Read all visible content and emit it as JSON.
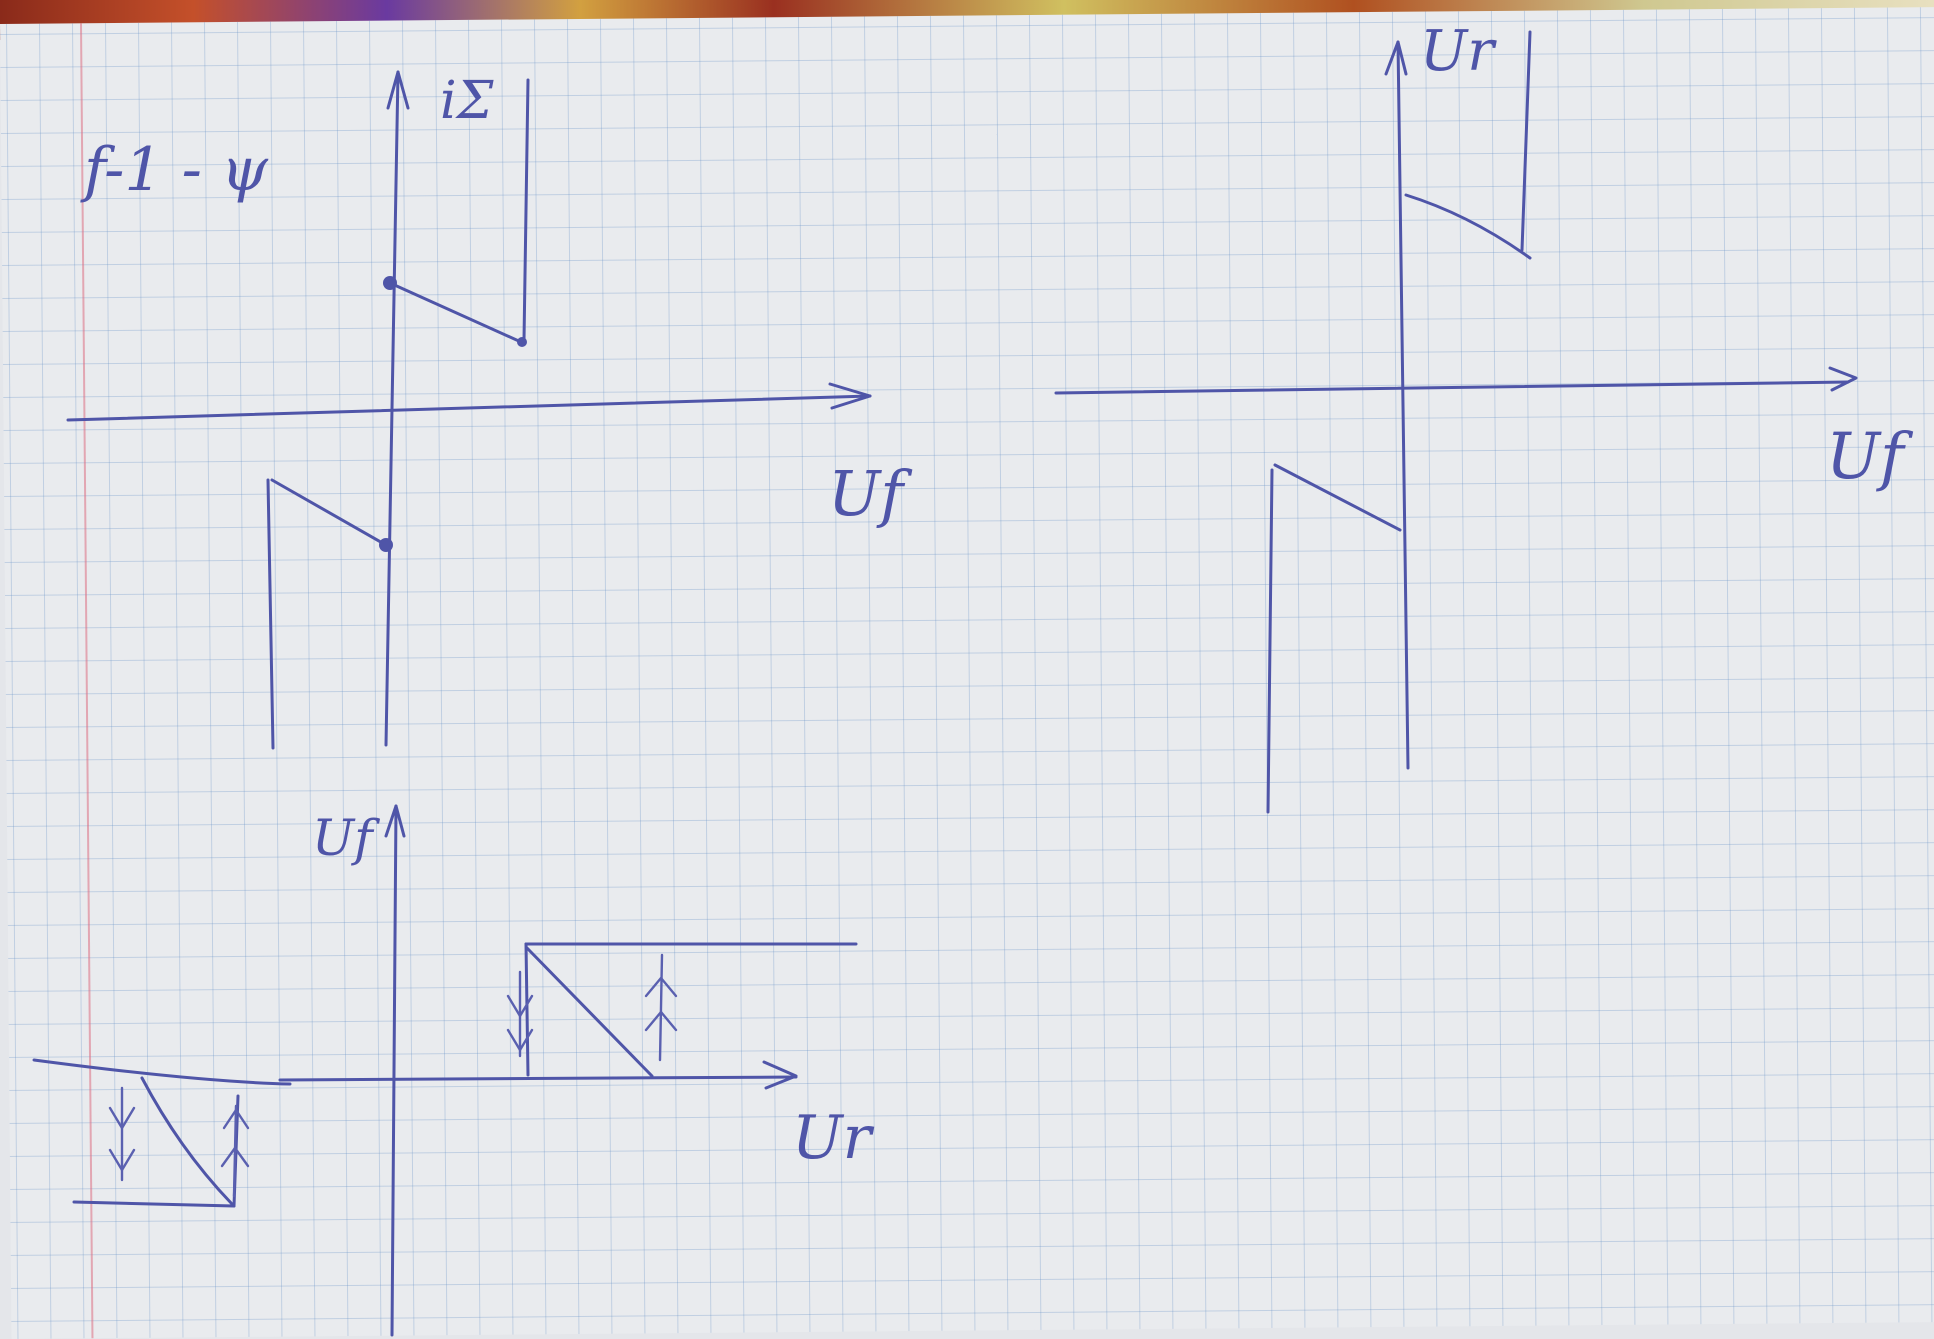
{
  "graph_top_left": {
    "title": "f-1 - ψ",
    "y_label": "iΣ",
    "x_label": "Uf"
  },
  "graph_top_right": {
    "y_label": "Ur",
    "x_label": "Uf"
  },
  "graph_bottom": {
    "y_label": "Uf",
    "x_label": "Ur"
  },
  "colors": {
    "ink": "#4f55a8",
    "grid": "#8fa8cc",
    "margin": "#dc6e82",
    "paper": "#e9ebee"
  }
}
